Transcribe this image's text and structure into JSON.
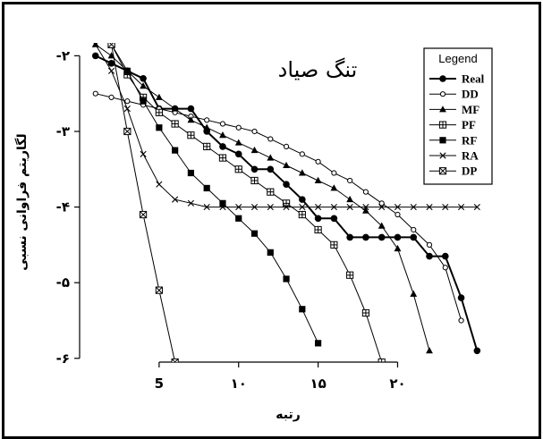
{
  "chart_data": {
    "type": "line",
    "title": "تنگ صیاد",
    "xlabel": "رتبه",
    "ylabel": "لگاریتم فراوانی نسبی",
    "xlim": [
      0,
      26.5
    ],
    "ylim": [
      -6.05,
      -1.83
    ],
    "x_ticks": [
      {
        "value": 5,
        "label": "5"
      },
      {
        "value": 10,
        "label": "۱۰"
      },
      {
        "value": 15,
        "label": "۱۵"
      },
      {
        "value": 20,
        "label": "۲۰"
      }
    ],
    "y_ticks": [
      {
        "value": -2,
        "label": "-۲"
      },
      {
        "value": -3,
        "label": "-۳"
      },
      {
        "value": -4,
        "label": "-۴"
      },
      {
        "value": -5,
        "label": "-۵"
      },
      {
        "value": -6,
        "label": "-۶"
      }
    ],
    "legend": {
      "title": "Legend",
      "position": "top-right"
    },
    "series": [
      {
        "name": "Real",
        "marker": "filled-circle",
        "line_width": 2,
        "x": [
          1,
          2,
          3,
          4,
          5,
          6,
          7,
          8,
          9,
          10,
          11,
          12,
          13,
          14,
          15,
          16,
          17,
          18,
          19,
          20,
          21,
          22,
          23,
          24,
          25
        ],
        "y": [
          -2.0,
          -2.1,
          -2.2,
          -2.3,
          -2.7,
          -2.7,
          -2.7,
          -3.0,
          -3.2,
          -3.3,
          -3.5,
          -3.5,
          -3.7,
          -3.9,
          -4.15,
          -4.15,
          -4.4,
          -4.4,
          -4.4,
          -4.4,
          -4.4,
          -4.65,
          -4.65,
          -5.2,
          -5.9
        ]
      },
      {
        "name": "DD",
        "marker": "open-circle",
        "line_width": 1,
        "x": [
          1,
          2,
          3,
          4,
          5,
          6,
          7,
          8,
          9,
          10,
          11,
          12,
          13,
          14,
          15,
          16,
          17,
          18,
          19,
          20,
          21,
          22,
          23,
          24
        ],
        "y": [
          -2.5,
          -2.55,
          -2.6,
          -2.65,
          -2.7,
          -2.75,
          -2.8,
          -2.85,
          -2.9,
          -2.95,
          -3.0,
          -3.1,
          -3.2,
          -3.3,
          -3.4,
          -3.55,
          -3.65,
          -3.8,
          -3.95,
          -4.1,
          -4.3,
          -4.5,
          -4.8,
          -5.5
        ]
      },
      {
        "name": "MF",
        "marker": "filled-triangle",
        "line_width": 1,
        "x": [
          1,
          2,
          3,
          4,
          5,
          6,
          7,
          8,
          9,
          10,
          11,
          12,
          13,
          14,
          15,
          16,
          17,
          18,
          19,
          20,
          21,
          22
        ],
        "y": [
          -1.85,
          -2.0,
          -2.2,
          -2.4,
          -2.55,
          -2.7,
          -2.85,
          -2.95,
          -3.05,
          -3.15,
          -3.25,
          -3.35,
          -3.45,
          -3.55,
          -3.65,
          -3.75,
          -3.9,
          -4.05,
          -4.25,
          -4.55,
          -5.15,
          -5.9
        ]
      },
      {
        "name": "PF",
        "marker": "square-plus",
        "line_width": 1,
        "x": [
          2,
          3,
          4,
          5,
          6,
          7,
          8,
          9,
          10,
          11,
          12,
          13,
          14,
          15,
          16,
          17,
          18,
          19
        ],
        "y": [
          -1.85,
          -2.25,
          -2.55,
          -2.75,
          -2.9,
          -3.05,
          -3.2,
          -3.35,
          -3.5,
          -3.65,
          -3.8,
          -3.95,
          -4.1,
          -4.3,
          -4.5,
          -4.9,
          -5.4,
          -6.05
        ]
      },
      {
        "name": "RF",
        "marker": "filled-square",
        "line_width": 1,
        "x": [
          2,
          3,
          4,
          5,
          6,
          7,
          8,
          9,
          10,
          11,
          12,
          13,
          14,
          15
        ],
        "y": [
          -1.85,
          -2.2,
          -2.6,
          -2.95,
          -3.25,
          -3.55,
          -3.75,
          -3.95,
          -4.15,
          -4.35,
          -4.6,
          -4.95,
          -5.35,
          -5.8
        ]
      },
      {
        "name": "RA",
        "marker": "cross",
        "line_width": 1,
        "x": [
          1,
          2,
          3,
          4,
          5,
          6,
          7,
          8,
          9,
          10,
          11,
          12,
          13,
          14,
          15,
          16,
          17,
          18,
          19,
          20,
          21,
          22,
          23,
          24,
          25
        ],
        "y": [
          -1.85,
          -2.2,
          -2.7,
          -3.3,
          -3.7,
          -3.9,
          -3.95,
          -4.0,
          -4.0,
          -4.0,
          -4.0,
          -4.0,
          -4.0,
          -4.0,
          -4.0,
          -4.0,
          -4.0,
          -4.0,
          -4.0,
          -4.0,
          -4.0,
          -4.0,
          -4.0,
          -4.0,
          -4.0
        ]
      },
      {
        "name": "DP",
        "marker": "square-x",
        "line_width": 1,
        "x": [
          2,
          3,
          4,
          5,
          6
        ],
        "y": [
          -1.85,
          -3.0,
          -4.1,
          -5.1,
          -6.05
        ]
      }
    ]
  }
}
